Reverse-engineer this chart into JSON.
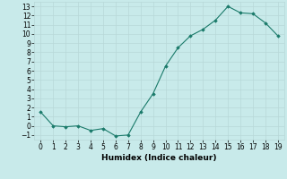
{
  "x": [
    0,
    1,
    2,
    3,
    4,
    5,
    6,
    7,
    8,
    9,
    10,
    11,
    12,
    13,
    14,
    15,
    16,
    17,
    18,
    19
  ],
  "y": [
    1.5,
    0.0,
    -0.1,
    0.0,
    -0.5,
    -0.3,
    -1.1,
    -1.0,
    1.5,
    3.5,
    6.5,
    8.5,
    9.8,
    10.5,
    11.5,
    13.0,
    12.3,
    12.2,
    11.2,
    9.8
  ],
  "line_color": "#1a7a6a",
  "marker": "D",
  "marker_size": 1.8,
  "bg_color": "#c8eaea",
  "grid_color": "#b8d8d8",
  "xlabel": "Humidex (Indice chaleur)",
  "xlim": [
    -0.5,
    19.5
  ],
  "ylim": [
    -1.5,
    13.5
  ],
  "xticks": [
    0,
    1,
    2,
    3,
    4,
    5,
    6,
    7,
    8,
    9,
    10,
    11,
    12,
    13,
    14,
    15,
    16,
    17,
    18,
    19
  ],
  "yticks": [
    -1,
    0,
    1,
    2,
    3,
    4,
    5,
    6,
    7,
    8,
    9,
    10,
    11,
    12,
    13
  ],
  "xlabel_fontsize": 6.5,
  "tick_fontsize": 5.5,
  "linewidth": 0.8
}
